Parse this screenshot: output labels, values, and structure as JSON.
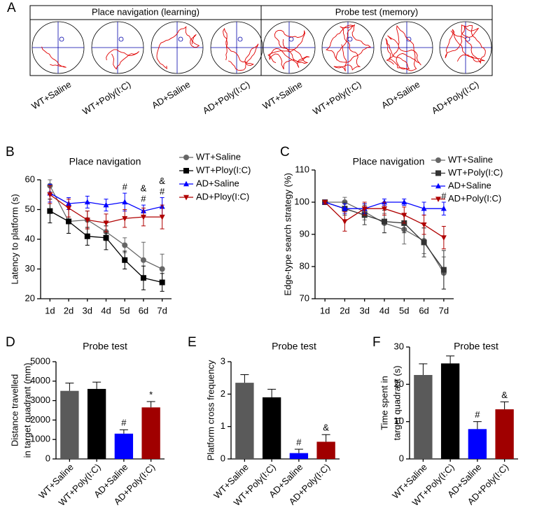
{
  "panel_a": {
    "label": "A",
    "headers": [
      "Place navigation (learning)",
      "Probe test (memory)"
    ],
    "groups": [
      "WT+Saline",
      "WT+Poly(I:C)",
      "AD+Saline",
      "AD+Poly(I:C)",
      "WT+Saline",
      "WT+Poly(I:C)",
      "AD+Saline",
      "AD+Poly(I:C)"
    ]
  },
  "chart_data": [
    {
      "type": "line",
      "panel": "B",
      "title": "Place navigation",
      "ylabel": [
        "Latency to platform (s)"
      ],
      "categories": [
        "1d",
        "2d",
        "3d",
        "4d",
        "5d",
        "6d",
        "7d"
      ],
      "ylim": [
        20,
        60
      ],
      "yticks": [
        20,
        30,
        40,
        50,
        60
      ],
      "series": [
        {
          "name": "WT+Saline",
          "color": "#666666",
          "marker": "circle",
          "values": [
            58,
            46,
            46.5,
            42.5,
            38,
            33,
            30
          ],
          "errors": [
            2,
            4,
            3,
            3,
            2.5,
            6,
            5
          ]
        },
        {
          "name": "WT+Ploy(I:C)",
          "color": "#000000",
          "marker": "square",
          "values": [
            49.5,
            46,
            41,
            40.5,
            33,
            27,
            25.5
          ],
          "errors": [
            4,
            4,
            3,
            4,
            3,
            4,
            3
          ]
        },
        {
          "name": "AD+Saline",
          "color": "#0000ff",
          "marker": "triangle",
          "values": [
            55.5,
            52,
            52.5,
            51.5,
            52.5,
            49.5,
            51
          ],
          "errors": [
            3,
            2,
            2,
            2,
            3,
            2,
            3
          ]
        },
        {
          "name": "AD+Ploy(I:C)",
          "color": "#b00000",
          "marker": "triangle-down",
          "values": [
            55,
            50.5,
            46.5,
            45.5,
            47,
            47.5,
            47.5
          ],
          "errors": [
            3,
            3,
            3,
            3,
            3,
            3,
            4
          ]
        }
      ],
      "annotations": [
        {
          "category": "5d",
          "text": "#"
        },
        {
          "category": "6d",
          "text": "#"
        },
        {
          "category": "6d",
          "text": "&"
        },
        {
          "category": "7d",
          "text": "#"
        },
        {
          "category": "7d",
          "text": "&"
        }
      ]
    },
    {
      "type": "line",
      "panel": "C",
      "title": "Place navigation",
      "ylabel": [
        "Edge-type search strategy (%)"
      ],
      "categories": [
        "1d",
        "2d",
        "3d",
        "4d",
        "5d",
        "6d",
        "7d"
      ],
      "ylim": [
        70,
        110
      ],
      "yticks": [
        70,
        80,
        90,
        100,
        110
      ],
      "series": [
        {
          "name": "WT+Saline",
          "color": "#666666",
          "marker": "circle",
          "values": [
            100,
            100,
            97,
            93.5,
            91.5,
            88,
            78
          ],
          "errors": [
            0.5,
            1.5,
            2.5,
            3,
            4.5,
            4,
            5
          ]
        },
        {
          "name": "WT+Poly(I:C)",
          "color": "#333333",
          "marker": "square",
          "values": [
            100,
            98,
            96,
            94,
            93.5,
            87.5,
            79
          ],
          "errors": [
            0.5,
            2,
            3,
            3.5,
            3,
            4.5,
            6
          ]
        },
        {
          "name": "AD+Saline",
          "color": "#0000ff",
          "marker": "triangle",
          "values": [
            100,
            98,
            98,
            100,
            100,
            98,
            98
          ],
          "errors": [
            0.5,
            1.5,
            1.5,
            1,
            1,
            2,
            2
          ]
        },
        {
          "name": "AD+Poly(I:C)",
          "color": "#b00000",
          "marker": "triangle-down",
          "values": [
            100,
            94,
            98,
            98,
            96,
            93,
            89
          ],
          "errors": [
            0.5,
            3,
            2,
            2,
            2.5,
            3,
            3.5
          ]
        }
      ],
      "annotations": [
        {
          "category": "7d",
          "text": "#"
        }
      ]
    },
    {
      "type": "bar",
      "panel": "D",
      "title": "Probe test",
      "ylabel": [
        "Distance travelled",
        "in target quadrant (mm)"
      ],
      "categories": [
        "WT+Saline",
        "WT+Poly(I:C)",
        "AD+Saline",
        "AD+Poly(I:C)"
      ],
      "values": [
        3500,
        3600,
        1300,
        2650
      ],
      "errors": [
        400,
        350,
        200,
        300
      ],
      "colors": [
        "#5a5a5a",
        "#000000",
        "#0000ff",
        "#a00000"
      ],
      "ylim": [
        0,
        5000
      ],
      "yticks": [
        0,
        1000,
        2000,
        3000,
        4000,
        5000
      ],
      "annotations": [
        {
          "category": "AD+Saline",
          "text": "#"
        },
        {
          "category": "AD+Poly(I:C)",
          "text": "*"
        }
      ]
    },
    {
      "type": "bar",
      "panel": "E",
      "title": "Probe test",
      "ylabel": [
        "Platform cross frequency"
      ],
      "categories": [
        "WT+Saline",
        "WT+Poly(I:C)",
        "AD+Saline",
        "AD+Poly(I:C)"
      ],
      "values": [
        2.35,
        1.9,
        0.18,
        0.53
      ],
      "errors": [
        0.25,
        0.25,
        0.12,
        0.22
      ],
      "colors": [
        "#5a5a5a",
        "#000000",
        "#0000ff",
        "#a00000"
      ],
      "ylim": [
        0,
        3
      ],
      "yticks": [
        0,
        1,
        2,
        3
      ],
      "annotations": [
        {
          "category": "AD+Saline",
          "text": "#"
        },
        {
          "category": "AD+Poly(I:C)",
          "text": "&"
        }
      ]
    },
    {
      "type": "bar",
      "panel": "F",
      "title": "Probe test",
      "ylabel": [
        "Time spent in",
        "target quadrant (s)"
      ],
      "categories": [
        "WT+Saline",
        "WT+Poly(I:C)",
        "AD+Saline",
        "AD+Poly(I:C)"
      ],
      "values": [
        22.5,
        25.6,
        8,
        13.3
      ],
      "errors": [
        3,
        2,
        2,
        2
      ],
      "colors": [
        "#5a5a5a",
        "#000000",
        "#0000ff",
        "#a00000"
      ],
      "ylim": [
        0,
        30
      ],
      "yticks": [
        0,
        10,
        20,
        30
      ],
      "annotations": [
        {
          "category": "AD+Saline",
          "text": "#"
        },
        {
          "category": "AD+Poly(I:C)",
          "text": "&"
        }
      ]
    }
  ]
}
